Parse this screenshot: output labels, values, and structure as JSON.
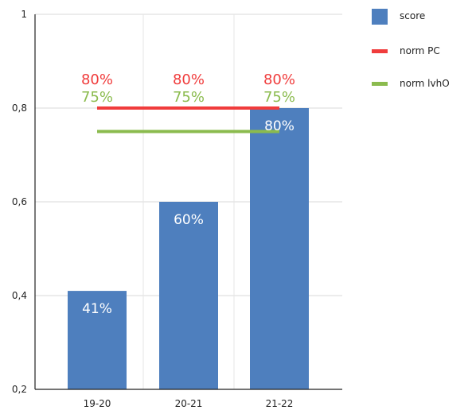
{
  "chart_data": {
    "type": "bar",
    "title": "",
    "xlabel": "",
    "ylabel": "",
    "categories": [
      "19-20",
      "20-21",
      "21-22"
    ],
    "ylim": [
      0.2,
      1.0
    ],
    "yticks": [
      0.2,
      0.4,
      0.6,
      0.8,
      1.0
    ],
    "ytick_labels": [
      "0,2",
      "0,4",
      "0,6",
      "0,8",
      "1"
    ],
    "grid": true,
    "legend_position": "top-right",
    "series": [
      {
        "name": "score",
        "kind": "bar",
        "color": "#4e7fbe",
        "values": [
          0.41,
          0.6,
          0.8
        ],
        "labels": [
          "41%",
          "60%",
          "80%"
        ]
      },
      {
        "name": "norm PC",
        "kind": "line",
        "color": "#f03c3c",
        "values": [
          0.8,
          0.8,
          0.8
        ],
        "labels": [
          "80%",
          "80%",
          "80%"
        ]
      },
      {
        "name": "norm lvhO",
        "kind": "line",
        "color": "#8bbb4e",
        "values": [
          0.75,
          0.75,
          0.75
        ],
        "labels": [
          "75%",
          "75%",
          "75%"
        ]
      }
    ]
  }
}
